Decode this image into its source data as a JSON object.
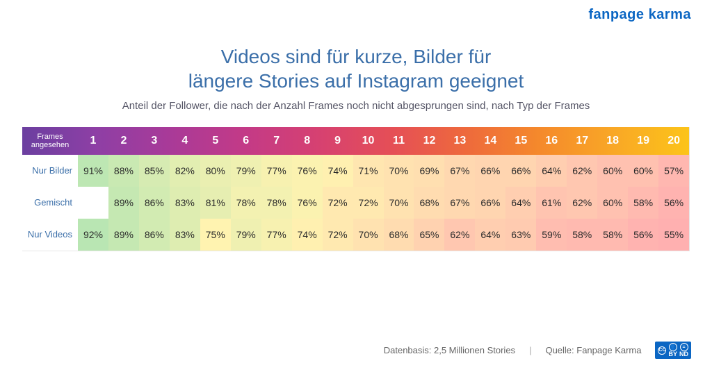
{
  "logo": "fanpage karma",
  "title_line1": "Videos sind für kurze, Bilder für",
  "title_line2": "längere Stories auf Instagram geeignet",
  "subtitle": "Anteil der Follower, die nach der Anzahl Frames noch nicht abgesprungen sind, nach Typ der Frames",
  "table": {
    "type": "heatmap",
    "corner_label": "Frames angesehen",
    "columns": [
      "1",
      "2",
      "3",
      "4",
      "5",
      "6",
      "7",
      "8",
      "9",
      "10",
      "11",
      "12",
      "13",
      "14",
      "15",
      "16",
      "17",
      "18",
      "19",
      "20"
    ],
    "rows": [
      {
        "label": "Nur Bilder",
        "cells": [
          "91%",
          "88%",
          "85%",
          "82%",
          "80%",
          "79%",
          "77%",
          "76%",
          "74%",
          "71%",
          "70%",
          "69%",
          "67%",
          "66%",
          "66%",
          "64%",
          "62%",
          "60%",
          "60%",
          "57%"
        ],
        "empty": []
      },
      {
        "label": "Gemischt",
        "cells": [
          "",
          "89%",
          "86%",
          "83%",
          "81%",
          "78%",
          "78%",
          "76%",
          "72%",
          "72%",
          "70%",
          "68%",
          "67%",
          "66%",
          "64%",
          "61%",
          "62%",
          "60%",
          "58%",
          "56%"
        ],
        "empty": [
          0
        ]
      },
      {
        "label": "Nur Videos",
        "cells": [
          "92%",
          "89%",
          "86%",
          "83%",
          "75%",
          "79%",
          "77%",
          "74%",
          "72%",
          "70%",
          "68%",
          "65%",
          "62%",
          "64%",
          "63%",
          "59%",
          "58%",
          "58%",
          "56%",
          "55%"
        ],
        "empty": []
      }
    ],
    "header_gradient": [
      "#6b3fa0",
      "#8e3fa5",
      "#a93a98",
      "#c33a87",
      "#d64171",
      "#e54f56",
      "#ee6a3c",
      "#f58a2b",
      "#f9a826",
      "#fcc419"
    ],
    "heat_green": "#b9e6b3",
    "heat_yellow": "#fff3b0",
    "heat_red": "#ffb0b0",
    "empty_bg": "#ffffff",
    "rowlabel_color": "#3b6fa9",
    "cell_fontsize": 14,
    "header_fontsize": 16,
    "border_color": "#e5e5e5",
    "value_min": 55,
    "value_mid": 75,
    "value_max": 92
  },
  "footer": {
    "datenbasis": "Datenbasis: 2,5 Millionen Stories",
    "quelle": "Quelle: Fanpage Karma",
    "cc": {
      "cc": "CC",
      "by": "BY",
      "nd": "ND"
    }
  },
  "colors": {
    "title": "#3b6fa9",
    "subtitle": "#556",
    "logo": "#0b66c3",
    "background": "#ffffff"
  }
}
